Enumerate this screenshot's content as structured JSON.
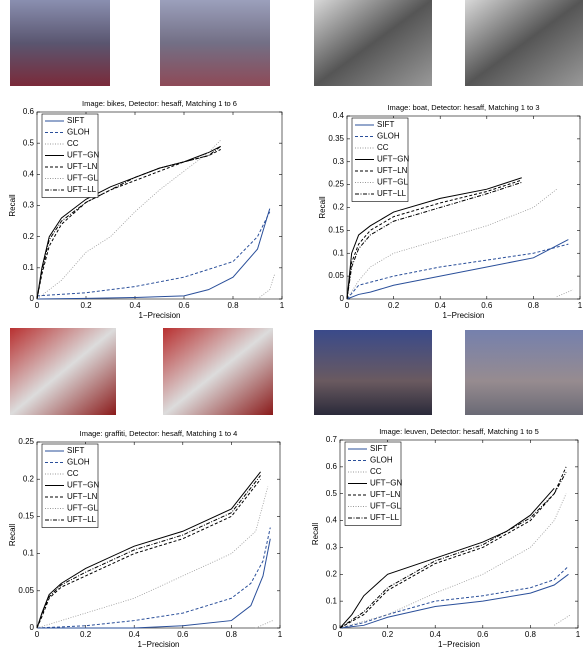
{
  "chart_data": [
    {
      "type": "line",
      "title": "Image: bikes, Detector: hesaff, Matching 1 to 6",
      "xlabel": "1−Precision",
      "ylabel": "Recall",
      "xlim": [
        0,
        1
      ],
      "xticks": [
        0,
        0.2,
        0.4,
        0.6,
        0.8,
        1
      ],
      "ylim": [
        0,
        0.6
      ],
      "yticks": [
        0,
        0.1,
        0.2,
        0.3,
        0.4,
        0.5,
        0.6
      ],
      "legend": "upper left",
      "series": [
        {
          "name": "SIFT",
          "color": "#2a4f9a",
          "linestyle": "solid",
          "x": [
            0,
            0.2,
            0.4,
            0.6,
            0.7,
            0.8,
            0.9,
            0.95
          ],
          "values": [
            0,
            0.002,
            0.005,
            0.01,
            0.03,
            0.07,
            0.16,
            0.29
          ]
        },
        {
          "name": "GLOH",
          "color": "#2a4f9a",
          "linestyle": "dashed",
          "x": [
            0,
            0.2,
            0.4,
            0.6,
            0.8,
            0.9,
            0.95
          ],
          "values": [
            0.01,
            0.02,
            0.04,
            0.07,
            0.12,
            0.2,
            0.28
          ]
        },
        {
          "name": "CC",
          "color": "#999999",
          "linestyle": "dotted",
          "x": [
            0.9,
            0.95,
            0.97
          ],
          "values": [
            0,
            0.03,
            0.08
          ]
        },
        {
          "name": "UFT−GN",
          "color": "#000000",
          "linestyle": "solid",
          "x": [
            0,
            0.02,
            0.05,
            0.1,
            0.2,
            0.3,
            0.4,
            0.5,
            0.6,
            0.7,
            0.75
          ],
          "values": [
            0,
            0.1,
            0.2,
            0.26,
            0.32,
            0.36,
            0.39,
            0.42,
            0.44,
            0.47,
            0.49
          ]
        },
        {
          "name": "UFT−LN",
          "color": "#000000",
          "linestyle": "dashed",
          "x": [
            0,
            0.02,
            0.05,
            0.1,
            0.2,
            0.3,
            0.4,
            0.5,
            0.6,
            0.7,
            0.75
          ],
          "values": [
            0,
            0.08,
            0.17,
            0.24,
            0.31,
            0.35,
            0.38,
            0.41,
            0.44,
            0.46,
            0.48
          ]
        },
        {
          "name": "UFT−GL",
          "color": "#999999",
          "linestyle": "dotted",
          "x": [
            0,
            0.1,
            0.2,
            0.3,
            0.4,
            0.5,
            0.6,
            0.7,
            0.75
          ],
          "values": [
            0,
            0.06,
            0.15,
            0.2,
            0.28,
            0.35,
            0.41,
            0.47,
            0.51
          ]
        },
        {
          "name": "UFT−LL",
          "color": "#000000",
          "linestyle": "dashdot",
          "x": [
            0,
            0.02,
            0.05,
            0.1,
            0.2,
            0.3,
            0.4,
            0.5,
            0.6,
            0.7,
            0.75
          ],
          "values": [
            0,
            0.09,
            0.19,
            0.25,
            0.31,
            0.35,
            0.39,
            0.42,
            0.44,
            0.46,
            0.49
          ]
        }
      ]
    },
    {
      "type": "line",
      "title": "Image: boat, Detector: hesaff, Matching 1 to 3",
      "xlabel": "1−Precision",
      "ylabel": "Recall",
      "xlim": [
        0,
        1
      ],
      "xticks": [
        0,
        0.2,
        0.4,
        0.6,
        0.8,
        1
      ],
      "ylim": [
        0,
        0.4
      ],
      "yticks": [
        0,
        0.05,
        0.1,
        0.15,
        0.2,
        0.25,
        0.3,
        0.35,
        0.4
      ],
      "legend": "upper left",
      "series": [
        {
          "name": "SIFT",
          "color": "#2a4f9a",
          "linestyle": "solid",
          "x": [
            0,
            0.05,
            0.1,
            0.2,
            0.4,
            0.6,
            0.8,
            0.95
          ],
          "values": [
            0,
            0.01,
            0.015,
            0.03,
            0.05,
            0.07,
            0.09,
            0.13
          ]
        },
        {
          "name": "GLOH",
          "color": "#2a4f9a",
          "linestyle": "dashed",
          "x": [
            0,
            0.05,
            0.2,
            0.4,
            0.6,
            0.8,
            0.95
          ],
          "values": [
            0,
            0.03,
            0.05,
            0.07,
            0.085,
            0.1,
            0.12
          ]
        },
        {
          "name": "CC",
          "color": "#999999",
          "linestyle": "dotted",
          "x": [
            0.9,
            0.97
          ],
          "values": [
            0.005,
            0.02
          ]
        },
        {
          "name": "UFT−GN",
          "color": "#000000",
          "linestyle": "solid",
          "x": [
            0,
            0.02,
            0.05,
            0.1,
            0.2,
            0.4,
            0.6,
            0.75
          ],
          "values": [
            0,
            0.1,
            0.14,
            0.16,
            0.19,
            0.22,
            0.24,
            0.265
          ]
        },
        {
          "name": "UFT−LN",
          "color": "#000000",
          "linestyle": "dashed",
          "x": [
            0,
            0.02,
            0.05,
            0.1,
            0.2,
            0.4,
            0.6,
            0.75
          ],
          "values": [
            0,
            0.08,
            0.12,
            0.15,
            0.18,
            0.21,
            0.235,
            0.26
          ]
        },
        {
          "name": "UFT−GL",
          "color": "#999999",
          "linestyle": "dotted",
          "x": [
            0,
            0.05,
            0.1,
            0.2,
            0.4,
            0.6,
            0.8,
            0.9
          ],
          "values": [
            0,
            0.04,
            0.07,
            0.1,
            0.13,
            0.16,
            0.2,
            0.24
          ]
        },
        {
          "name": "UFT−LL",
          "color": "#000000",
          "linestyle": "dashdot",
          "x": [
            0,
            0.02,
            0.05,
            0.1,
            0.2,
            0.4,
            0.6,
            0.75
          ],
          "values": [
            0,
            0.07,
            0.11,
            0.14,
            0.17,
            0.2,
            0.23,
            0.255
          ]
        }
      ]
    },
    {
      "type": "line",
      "title": "Image: graffiti, Detector: hesaff, Matching 1 to 4",
      "xlabel": "1−Precision",
      "ylabel": "Recall",
      "xlim": [
        0,
        1
      ],
      "xticks": [
        0,
        0.2,
        0.4,
        0.6,
        0.8,
        1
      ],
      "ylim": [
        0,
        0.25
      ],
      "yticks": [
        0,
        0.05,
        0.1,
        0.15,
        0.2,
        0.25
      ],
      "legend": "upper left",
      "series": [
        {
          "name": "SIFT",
          "color": "#2a4f9a",
          "linestyle": "solid",
          "x": [
            0,
            0.4,
            0.6,
            0.8,
            0.88,
            0.93,
            0.96
          ],
          "values": [
            0,
            0,
            0.003,
            0.01,
            0.03,
            0.07,
            0.12
          ]
        },
        {
          "name": "GLOH",
          "color": "#2a4f9a",
          "linestyle": "dashed",
          "x": [
            0,
            0.2,
            0.4,
            0.6,
            0.8,
            0.88,
            0.93,
            0.96
          ],
          "values": [
            0,
            0.003,
            0.01,
            0.02,
            0.04,
            0.06,
            0.09,
            0.135
          ]
        },
        {
          "name": "CC",
          "color": "#999999",
          "linestyle": "dotted",
          "x": [
            0.9,
            0.97
          ],
          "values": [
            0,
            0.01
          ]
        },
        {
          "name": "UFT−GN",
          "color": "#000000",
          "linestyle": "solid",
          "x": [
            0,
            0.02,
            0.05,
            0.1,
            0.2,
            0.4,
            0.6,
            0.8,
            0.92
          ],
          "values": [
            0,
            0.02,
            0.045,
            0.06,
            0.08,
            0.11,
            0.13,
            0.16,
            0.21
          ]
        },
        {
          "name": "UFT−LN",
          "color": "#000000",
          "linestyle": "dashed",
          "x": [
            0,
            0.02,
            0.05,
            0.1,
            0.2,
            0.4,
            0.6,
            0.8,
            0.92
          ],
          "values": [
            0,
            0.015,
            0.04,
            0.055,
            0.07,
            0.1,
            0.12,
            0.15,
            0.2
          ]
        },
        {
          "name": "UFT−GL",
          "color": "#999999",
          "linestyle": "dotted",
          "x": [
            0,
            0.1,
            0.2,
            0.4,
            0.6,
            0.8,
            0.9,
            0.95
          ],
          "values": [
            0,
            0.01,
            0.02,
            0.04,
            0.07,
            0.1,
            0.13,
            0.19
          ]
        },
        {
          "name": "UFT−LL",
          "color": "#000000",
          "linestyle": "dashdot",
          "x": [
            0,
            0.02,
            0.05,
            0.1,
            0.2,
            0.4,
            0.6,
            0.8,
            0.92
          ],
          "values": [
            0,
            0.018,
            0.042,
            0.058,
            0.075,
            0.105,
            0.125,
            0.155,
            0.205
          ]
        }
      ]
    },
    {
      "type": "line",
      "title": "Image: leuven, Detector: hesaff, Matching 1 to 5",
      "xlabel": "1−Precision",
      "ylabel": "Recall",
      "xlim": [
        0,
        1
      ],
      "xticks": [
        0,
        0.2,
        0.4,
        0.6,
        0.8,
        1
      ],
      "ylim": [
        0,
        0.7
      ],
      "yticks": [
        0,
        0.1,
        0.2,
        0.3,
        0.4,
        0.5,
        0.6,
        0.7
      ],
      "legend": "upper left",
      "series": [
        {
          "name": "SIFT",
          "color": "#2a4f9a",
          "linestyle": "solid",
          "x": [
            0,
            0.1,
            0.2,
            0.4,
            0.6,
            0.8,
            0.9,
            0.96
          ],
          "values": [
            0,
            0.01,
            0.04,
            0.08,
            0.1,
            0.13,
            0.16,
            0.2
          ]
        },
        {
          "name": "GLOH",
          "color": "#2a4f9a",
          "linestyle": "dashed",
          "x": [
            0,
            0.1,
            0.2,
            0.4,
            0.6,
            0.8,
            0.9,
            0.96
          ],
          "values": [
            0,
            0.02,
            0.05,
            0.1,
            0.12,
            0.15,
            0.18,
            0.23
          ]
        },
        {
          "name": "CC",
          "color": "#999999",
          "linestyle": "dotted",
          "x": [
            0.9,
            0.97
          ],
          "values": [
            0.01,
            0.05
          ]
        },
        {
          "name": "UFT−GN",
          "color": "#000000",
          "linestyle": "solid",
          "x": [
            0,
            0.05,
            0.1,
            0.2,
            0.4,
            0.6,
            0.7,
            0.8,
            0.9
          ],
          "values": [
            0,
            0.05,
            0.12,
            0.2,
            0.26,
            0.32,
            0.36,
            0.42,
            0.52
          ]
        },
        {
          "name": "UFT−LN",
          "color": "#000000",
          "linestyle": "dashed",
          "x": [
            0,
            0.1,
            0.2,
            0.4,
            0.6,
            0.8,
            0.9,
            0.95
          ],
          "values": [
            0,
            0.05,
            0.14,
            0.24,
            0.3,
            0.4,
            0.5,
            0.6
          ]
        },
        {
          "name": "UFT−GL",
          "color": "#999999",
          "linestyle": "dotted",
          "x": [
            0,
            0.2,
            0.4,
            0.6,
            0.8,
            0.9,
            0.95
          ],
          "values": [
            0,
            0.05,
            0.13,
            0.2,
            0.3,
            0.4,
            0.5
          ]
        },
        {
          "name": "UFT−LL",
          "color": "#000000",
          "linestyle": "dashdot",
          "x": [
            0,
            0.1,
            0.2,
            0.4,
            0.6,
            0.8,
            0.9,
            0.95
          ],
          "values": [
            0,
            0.06,
            0.15,
            0.25,
            0.31,
            0.41,
            0.5,
            0.58
          ]
        }
      ]
    }
  ]
}
